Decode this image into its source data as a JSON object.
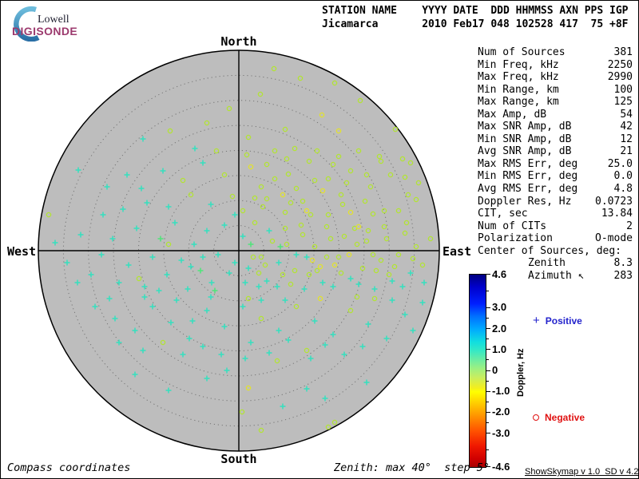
{
  "logo": {
    "line1": "Lowell",
    "line2": "DIGISONDE"
  },
  "header": {
    "row1": "STATION NAME    YYYY DATE  DDD HHMMSS AXN PPS IGP",
    "row2": "Jicamarca       2010 Feb17 048 102528 417  75 +8F"
  },
  "compass": {
    "north": "North",
    "south": "South",
    "east": "East",
    "west": "West"
  },
  "stats": {
    "rows": [
      {
        "label": "Num of Sources",
        "value": "381"
      },
      {
        "label": "Min Freq, kHz",
        "value": "2250"
      },
      {
        "label": "Max Freq, kHz",
        "value": "2990"
      },
      {
        "label": "Min Range, km",
        "value": "100"
      },
      {
        "label": "Max Range, km",
        "value": "125"
      },
      {
        "label": "Max Amp, dB",
        "value": "54"
      },
      {
        "label": "Max SNR Amp, dB",
        "value": "42"
      },
      {
        "label": "Min SNR Amp, dB",
        "value": "12"
      },
      {
        "label": "Avg SNR Amp, dB",
        "value": "21"
      },
      {
        "label": "Max RMS Err, deg",
        "value": "25.0"
      },
      {
        "label": "Min RMS Err, deg",
        "value": "0.0"
      },
      {
        "label": "Avg RMS Err, deg",
        "value": "4.8"
      },
      {
        "label": "Doppler Res, Hz",
        "value": "0.0723"
      },
      {
        "label": "CIT, sec",
        "value": "13.84"
      },
      {
        "label": "Num of CITs",
        "value": "2"
      },
      {
        "label": "Polarization",
        "value": "O-mode"
      },
      {
        "label": "Center of Sources, deg:",
        "value": ""
      },
      {
        "label": "Zenith",
        "value": "8.3",
        "indent": true
      },
      {
        "label": "Azimuth ↖",
        "value": "283",
        "indent": true
      }
    ]
  },
  "colorbar": {
    "title": "Doppler, Hz",
    "labels": [
      "4.6",
      "3.0",
      "2.0",
      "1.0",
      "0",
      "-1.0",
      "-2.0",
      "-3.0",
      "-4.6"
    ],
    "label_values": [
      4.6,
      3.0,
      2.0,
      1.0,
      0,
      -1.0,
      -2.0,
      -3.0,
      -4.6
    ],
    "minor_ticks": [
      3.8,
      2.5,
      1.5,
      0.5,
      -0.5,
      -1.5,
      -2.5,
      -3.8
    ],
    "gradient_stops": [
      {
        "pct": 0,
        "color": "#000080"
      },
      {
        "pct": 6.5,
        "color": "#0000CD"
      },
      {
        "pct": 15.2,
        "color": "#0020FF"
      },
      {
        "pct": 21.7,
        "color": "#0070FF"
      },
      {
        "pct": 28.3,
        "color": "#00AAFF"
      },
      {
        "pct": 34.8,
        "color": "#10DDE0"
      },
      {
        "pct": 39.0,
        "color": "#30E8C8"
      },
      {
        "pct": 44.6,
        "color": "#6FEDA0"
      },
      {
        "pct": 48.9,
        "color": "#9EF080"
      },
      {
        "pct": 53.3,
        "color": "#C8EE60"
      },
      {
        "pct": 58.7,
        "color": "#F2EE20"
      },
      {
        "pct": 60.9,
        "color": "#FFFF00"
      },
      {
        "pct": 67.4,
        "color": "#FFC800"
      },
      {
        "pct": 73.9,
        "color": "#FF9000"
      },
      {
        "pct": 81.5,
        "color": "#FF5000"
      },
      {
        "pct": 89.1,
        "color": "#F01800"
      },
      {
        "pct": 95.7,
        "color": "#D00000"
      },
      {
        "pct": 100,
        "color": "#A80000"
      }
    ]
  },
  "legend": {
    "positive": {
      "marker": "plus",
      "label": "Positive",
      "color": "#2222CC"
    },
    "negative": {
      "marker": "circle",
      "label": "Negative",
      "color": "#E01111"
    }
  },
  "footer": {
    "left": "Compass coordinates",
    "center": "Zenith: max 40°  step 5°",
    "right": "ShowSkymap v 1.0  SD v 4.2"
  },
  "chart_data": {
    "type": "scatter",
    "projection": "polar-skymap, compass coordinates, zenith max 40 deg, ring step 5 deg",
    "station": "Jicamarca",
    "date": "2010 Feb17 048 102528",
    "num_sources": 381,
    "orientation_labels": [
      "North",
      "East",
      "South",
      "West"
    ],
    "colorbar": {
      "label": "Doppler, Hz",
      "range": [
        -4.6,
        4.6
      ]
    },
    "legend": {
      "plus": "positive Doppler",
      "circle": "negative Doppler"
    },
    "markers": {
      "0": {
        "shape": "plus",
        "color": "#35E0BE",
        "approx_doppler_hz": 1.0
      },
      "1": {
        "shape": "plus",
        "color": "#4FE57A",
        "approx_doppler_hz": 0.5
      },
      "2": {
        "shape": "circle",
        "color": "#B2E432",
        "approx_doppler_hz": -0.5
      },
      "3": {
        "shape": "circle",
        "color": "#E3E32A",
        "approx_doppler_hz": -1.0
      }
    },
    "coords_note": "points are [dx,dy,markerType] px offsets from zenith center; +x East, +y South; 251 px = 40 deg zenith",
    "radius_px_per_40deg": 251,
    "points": [
      [
        77,
        -216,
        2
      ],
      [
        120,
        -210,
        2
      ],
      [
        27,
        -196,
        2
      ],
      [
        -12,
        -178,
        2
      ],
      [
        104,
        -170,
        3
      ],
      [
        152,
        -188,
        2
      ],
      [
        196,
        -152,
        2
      ],
      [
        215,
        -110,
        2
      ],
      [
        58,
        -152,
        2
      ],
      [
        12,
        -142,
        2
      ],
      [
        -40,
        -160,
        2
      ],
      [
        -86,
        -150,
        2
      ],
      [
        176,
        -118,
        2
      ],
      [
        208,
        -92,
        2
      ],
      [
        222,
        -64,
        2
      ],
      [
        -120,
        -140,
        0
      ],
      [
        125,
        -150,
        3
      ],
      [
        44,
        -228,
        2
      ],
      [
        10,
        -120,
        2
      ],
      [
        35,
        -108,
        2
      ],
      [
        62,
        -96,
        2
      ],
      [
        88,
        -112,
        2
      ],
      [
        112,
        -90,
        2
      ],
      [
        140,
        -100,
        2
      ],
      [
        165,
        -80,
        2
      ],
      [
        190,
        -95,
        2
      ],
      [
        212,
        -70,
        2
      ],
      [
        -18,
        -95,
        2
      ],
      [
        -45,
        -110,
        0
      ],
      [
        -70,
        -88,
        2
      ],
      [
        -95,
        -100,
        0
      ],
      [
        -122,
        -78,
        0
      ],
      [
        28,
        -80,
        2
      ],
      [
        55,
        -70,
        3
      ],
      [
        80,
        -62,
        2
      ],
      [
        105,
        -75,
        3
      ],
      [
        130,
        -58,
        2
      ],
      [
        158,
        -62,
        2
      ],
      [
        182,
        -50,
        2
      ],
      [
        -8,
        -68,
        2
      ],
      [
        -35,
        -58,
        0
      ],
      [
        -60,
        -70,
        2
      ],
      [
        -88,
        -55,
        0
      ],
      [
        -115,
        -60,
        0
      ],
      [
        -145,
        -52,
        0
      ],
      [
        5,
        -50,
        2
      ],
      [
        30,
        -55,
        2
      ],
      [
        58,
        -48,
        2
      ],
      [
        85,
        -50,
        3
      ],
      [
        112,
        -45,
        2
      ],
      [
        140,
        -48,
        3
      ],
      [
        168,
        -46,
        2
      ],
      [
        200,
        -50,
        2
      ],
      [
        225,
        -85,
        2
      ],
      [
        -170,
        -45,
        0
      ],
      [
        15,
        -105,
        3
      ],
      [
        45,
        -125,
        2
      ],
      [
        70,
        -128,
        2
      ],
      [
        98,
        -125,
        2
      ],
      [
        125,
        -118,
        2
      ],
      [
        150,
        -125,
        2
      ],
      [
        178,
        -112,
        2
      ],
      [
        -28,
        -125,
        2
      ],
      [
        -55,
        -128,
        0
      ],
      [
        205,
        -115,
        2
      ],
      [
        20,
        -66,
        2
      ],
      [
        -140,
        -95,
        0
      ],
      [
        95,
        -88,
        2
      ],
      [
        118,
        -108,
        2
      ],
      [
        72,
        -78,
        2
      ],
      [
        -230,
        -10,
        0
      ],
      [
        -215,
        15,
        0
      ],
      [
        -198,
        -20,
        0
      ],
      [
        -185,
        30,
        0
      ],
      [
        -172,
        5,
        0
      ],
      [
        -158,
        -15,
        0
      ],
      [
        -150,
        40,
        0
      ],
      [
        -138,
        18,
        0
      ],
      [
        -128,
        -28,
        0
      ],
      [
        -118,
        45,
        0
      ],
      [
        -108,
        8,
        0
      ],
      [
        -98,
        -15,
        1
      ],
      [
        -90,
        30,
        0
      ],
      [
        -80,
        -35,
        0
      ],
      [
        -72,
        12,
        0
      ],
      [
        -64,
        48,
        0
      ],
      [
        -56,
        -8,
        0
      ],
      [
        -48,
        25,
        1
      ],
      [
        -40,
        -25,
        0
      ],
      [
        -34,
        40,
        0
      ],
      [
        -26,
        5,
        0
      ],
      [
        -18,
        -32,
        0
      ],
      [
        -12,
        28,
        0
      ],
      [
        -202,
        40,
        0
      ],
      [
        -60,
        20,
        0
      ],
      [
        -100,
        50,
        0
      ],
      [
        -125,
        35,
        2
      ],
      [
        -88,
        -8,
        2
      ],
      [
        -45,
        8,
        0
      ],
      [
        -30,
        50,
        1
      ],
      [
        5,
        -18,
        0
      ],
      [
        12,
        22,
        0
      ],
      [
        20,
        -35,
        2
      ],
      [
        28,
        8,
        2
      ],
      [
        35,
        38,
        0
      ],
      [
        42,
        -12,
        2
      ],
      [
        50,
        15,
        0
      ],
      [
        58,
        -28,
        2
      ],
      [
        65,
        42,
        2
      ],
      [
        72,
        5,
        0
      ],
      [
        80,
        -20,
        2
      ],
      [
        88,
        30,
        2
      ],
      [
        95,
        -5,
        2
      ],
      [
        102,
        20,
        3
      ],
      [
        110,
        -30,
        2
      ],
      [
        118,
        45,
        0
      ],
      [
        125,
        8,
        2
      ],
      [
        132,
        -18,
        2
      ],
      [
        140,
        35,
        0
      ],
      [
        148,
        -8,
        2
      ],
      [
        155,
        22,
        2
      ],
      [
        162,
        -25,
        2
      ],
      [
        170,
        48,
        0
      ],
      [
        178,
        12,
        2
      ],
      [
        185,
        -15,
        2
      ],
      [
        192,
        38,
        0
      ],
      [
        200,
        5,
        2
      ],
      [
        208,
        -22,
        2
      ],
      [
        215,
        28,
        0
      ],
      [
        222,
        -5,
        2
      ],
      [
        230,
        18,
        2
      ],
      [
        15,
        -8,
        1
      ],
      [
        25,
        28,
        2
      ],
      [
        38,
        -25,
        0
      ],
      [
        48,
        45,
        0
      ],
      [
        60,
        -8,
        2
      ],
      [
        70,
        25,
        2
      ],
      [
        82,
        48,
        0
      ],
      [
        92,
        12,
        3
      ],
      [
        105,
        40,
        0
      ],
      [
        115,
        -15,
        2
      ],
      [
        128,
        28,
        2
      ],
      [
        138,
        5,
        3
      ],
      [
        150,
        42,
        0
      ],
      [
        160,
        -12,
        2
      ],
      [
        172,
        25,
        2
      ],
      [
        182,
        -30,
        2
      ],
      [
        195,
        20,
        2
      ],
      [
        205,
        45,
        0
      ],
      [
        218,
        10,
        2
      ],
      [
        8,
        40,
        0
      ],
      [
        33,
        18,
        2
      ],
      [
        55,
        30,
        2
      ],
      [
        78,
        -32,
        2
      ],
      [
        98,
        25,
        2
      ],
      [
        120,
        18,
        3
      ],
      [
        145,
        -28,
        2
      ],
      [
        168,
        5,
        2
      ],
      [
        188,
        30,
        2
      ],
      [
        210,
        -35,
        2
      ],
      [
        232,
        40,
        0
      ],
      [
        240,
        -15,
        2
      ],
      [
        -180,
        70,
        0
      ],
      [
        -155,
        85,
        0
      ],
      [
        -130,
        100,
        0
      ],
      [
        -108,
        70,
        0
      ],
      [
        -85,
        90,
        0
      ],
      [
        -62,
        110,
        0
      ],
      [
        -40,
        75,
        0
      ],
      [
        -18,
        95,
        0
      ],
      [
        -150,
        115,
        0
      ],
      [
        -120,
        125,
        0
      ],
      [
        -95,
        115,
        2
      ],
      [
        -70,
        130,
        0
      ],
      [
        -45,
        120,
        0
      ],
      [
        -22,
        130,
        0
      ],
      [
        5,
        70,
        0
      ],
      [
        28,
        85,
        2
      ],
      [
        50,
        100,
        0
      ],
      [
        72,
        70,
        2
      ],
      [
        95,
        88,
        0
      ],
      [
        118,
        105,
        0
      ],
      [
        140,
        75,
        2
      ],
      [
        162,
        92,
        0
      ],
      [
        185,
        110,
        0
      ],
      [
        208,
        80,
        0
      ],
      [
        15,
        115,
        0
      ],
      [
        38,
        128,
        0
      ],
      [
        62,
        112,
        0
      ],
      [
        85,
        125,
        2
      ],
      [
        108,
        118,
        0
      ],
      [
        132,
        130,
        0
      ],
      [
        155,
        120,
        0
      ],
      [
        12,
        60,
        2
      ],
      [
        58,
        62,
        0
      ],
      [
        102,
        60,
        3
      ],
      [
        148,
        58,
        2
      ],
      [
        192,
        62,
        0
      ],
      [
        218,
        100,
        0
      ],
      [
        230,
        65,
        0
      ],
      [
        -35,
        58,
        0
      ],
      [
        -78,
        62,
        0
      ],
      [
        -118,
        58,
        0
      ],
      [
        -162,
        60,
        0
      ],
      [
        8,
        135,
        0
      ],
      [
        48,
        138,
        2
      ],
      [
        90,
        135,
        0
      ],
      [
        170,
        60,
        2
      ],
      [
        -58,
        88,
        0
      ],
      [
        28,
        62,
        0
      ],
      [
        -88,
        175,
        0
      ],
      [
        -40,
        160,
        0
      ],
      [
        12,
        172,
        3
      ],
      [
        55,
        195,
        0
      ],
      [
        108,
        185,
        0
      ],
      [
        160,
        165,
        0
      ],
      [
        -130,
        155,
        0
      ],
      [
        28,
        225,
        2
      ],
      [
        120,
        215,
        2
      ],
      [
        -15,
        150,
        0
      ],
      [
        85,
        173,
        0
      ],
      [
        4,
        202,
        2
      ],
      [
        -201,
        -101,
        0
      ],
      [
        -238,
        -45,
        2
      ],
      [
        112,
        221,
        2
      ],
      [
        -165,
        -80,
        0
      ],
      [
        45,
        -90,
        2
      ],
      [
        135,
        -85,
        2
      ],
      [
        60,
        -115,
        2
      ],
      [
        150,
        -30,
        3
      ],
      [
        90,
        -45,
        2
      ],
      [
        25,
        45,
        0
      ],
      [
        65,
        -60,
        2
      ],
      [
        110,
        8,
        2
      ],
      [
        85,
        8,
        0
      ],
      [
        52,
        -5,
        1
      ],
      [
        18,
        8,
        2
      ],
      [
        -5,
        15,
        0
      ],
      [
        -5,
        -45,
        0
      ],
      [
        35,
        -65,
        2
      ],
      [
        128,
        -70,
        2
      ],
      [
        160,
        -95,
        2
      ]
    ]
  }
}
